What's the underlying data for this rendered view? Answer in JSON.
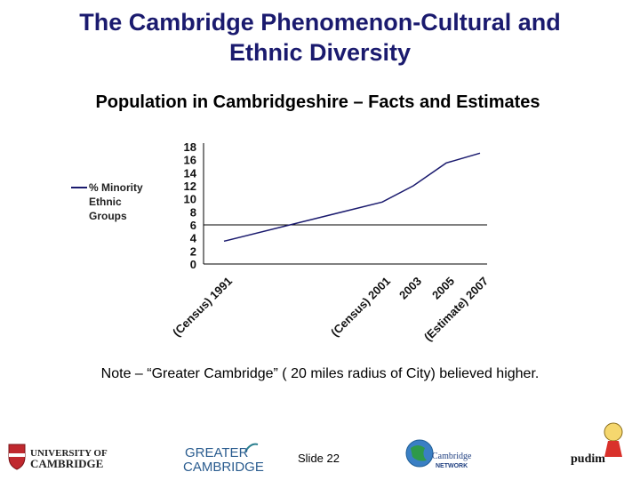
{
  "slide": {
    "title_line1": "The Cambridge Phenomenon-Cultural and",
    "title_line2": "Ethnic Diversity",
    "subtitle": "Population in Cambridgeshire – Facts and Estimates",
    "note": "Note – “Greater Cambridge” ( 20 miles radius of City) believed higher.",
    "slide_number": "Slide 22"
  },
  "logos": {
    "cambridge_line1": "UNIVERSITY OF",
    "cambridge_line2": "CAMBRIDGE",
    "greater_line1": "GREATER",
    "greater_line2": "CAMBRIDGE",
    "network_line1": "Cambridge",
    "network_line2": "NETWORK",
    "pudim": "pudim"
  },
  "colors": {
    "title": "#1a1a6e",
    "series_line": "#1a1a6e",
    "axis": "#000000",
    "crest_red": "#c0282e"
  },
  "chart_data": {
    "type": "line",
    "categories": [
      "(Census) 1991",
      "(Census) 2001",
      "2003",
      "2005",
      "(Estimate) 2007"
    ],
    "series": [
      {
        "name": "% Minority Ethnic Groups",
        "values": [
          3.5,
          9.5,
          12,
          15.5,
          17
        ]
      }
    ],
    "ylim": [
      0,
      18
    ],
    "yticks": [
      18,
      16,
      14,
      12,
      10,
      8,
      6,
      4,
      2,
      0
    ],
    "reference_line": 6,
    "legend": {
      "label_line1": "% Minority",
      "label_line2": "Ethnic",
      "label_line3": "Groups",
      "position": "left"
    },
    "grid": false
  }
}
